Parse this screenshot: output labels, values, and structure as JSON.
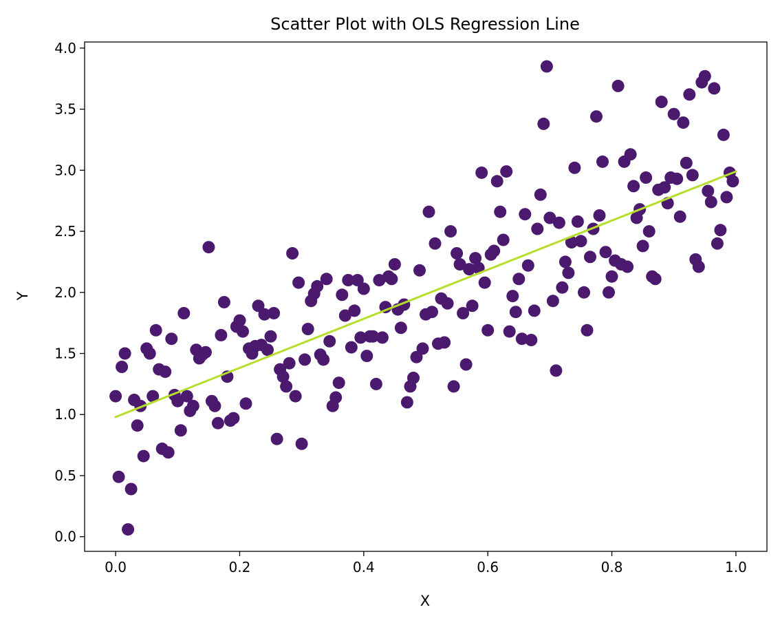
{
  "chart_data": {
    "type": "scatter",
    "title": "Scatter Plot with OLS Regression Line",
    "xlabel": "X",
    "ylabel": "Y",
    "xlim": [
      -0.05,
      1.05
    ],
    "ylim": [
      -0.12,
      4.05
    ],
    "xticks": [
      0.0,
      0.2,
      0.4,
      0.6,
      0.8,
      1.0
    ],
    "xtick_labels": [
      "0.0",
      "0.2",
      "0.4",
      "0.6",
      "0.8",
      "1.0"
    ],
    "yticks": [
      0.0,
      0.5,
      1.0,
      1.5,
      2.0,
      2.5,
      3.0,
      3.5,
      4.0
    ],
    "ytick_labels": [
      "0.0",
      "0.5",
      "1.0",
      "1.5",
      "2.0",
      "2.5",
      "3.0",
      "3.5",
      "4.0"
    ],
    "grid": false,
    "point_color": "#4b1a6f",
    "line_color": "#b5de2b",
    "regression_line": {
      "x": [
        0.0,
        1.0
      ],
      "y": [
        0.98,
        2.99
      ]
    },
    "points": [
      [
        0.0,
        1.15
      ],
      [
        0.005,
        0.49
      ],
      [
        0.01,
        1.39
      ],
      [
        0.015,
        1.5
      ],
      [
        0.02,
        0.06
      ],
      [
        0.025,
        0.39
      ],
      [
        0.03,
        1.12
      ],
      [
        0.035,
        0.91
      ],
      [
        0.04,
        1.07
      ],
      [
        0.045,
        0.66
      ],
      [
        0.05,
        1.54
      ],
      [
        0.055,
        1.5
      ],
      [
        0.06,
        1.15
      ],
      [
        0.065,
        1.69
      ],
      [
        0.07,
        1.37
      ],
      [
        0.075,
        0.72
      ],
      [
        0.08,
        1.35
      ],
      [
        0.085,
        0.69
      ],
      [
        0.09,
        1.62
      ],
      [
        0.095,
        1.16
      ],
      [
        0.1,
        1.11
      ],
      [
        0.105,
        0.87
      ],
      [
        0.11,
        1.83
      ],
      [
        0.115,
        1.15
      ],
      [
        0.12,
        1.03
      ],
      [
        0.125,
        1.07
      ],
      [
        0.13,
        1.53
      ],
      [
        0.135,
        1.46
      ],
      [
        0.14,
        1.49
      ],
      [
        0.145,
        1.51
      ],
      [
        0.15,
        2.37
      ],
      [
        0.155,
        1.11
      ],
      [
        0.16,
        1.07
      ],
      [
        0.165,
        0.93
      ],
      [
        0.17,
        1.65
      ],
      [
        0.175,
        1.92
      ],
      [
        0.18,
        1.31
      ],
      [
        0.185,
        0.95
      ],
      [
        0.19,
        0.97
      ],
      [
        0.195,
        1.72
      ],
      [
        0.2,
        1.77
      ],
      [
        0.205,
        1.68
      ],
      [
        0.21,
        1.09
      ],
      [
        0.215,
        1.54
      ],
      [
        0.22,
        1.5
      ],
      [
        0.225,
        1.56
      ],
      [
        0.23,
        1.89
      ],
      [
        0.235,
        1.57
      ],
      [
        0.24,
        1.82
      ],
      [
        0.245,
        1.53
      ],
      [
        0.25,
        1.64
      ],
      [
        0.255,
        1.83
      ],
      [
        0.26,
        0.8
      ],
      [
        0.265,
        1.37
      ],
      [
        0.27,
        1.31
      ],
      [
        0.275,
        1.23
      ],
      [
        0.28,
        1.42
      ],
      [
        0.285,
        2.32
      ],
      [
        0.29,
        1.15
      ],
      [
        0.295,
        2.08
      ],
      [
        0.3,
        0.76
      ],
      [
        0.305,
        1.45
      ],
      [
        0.31,
        1.7
      ],
      [
        0.315,
        1.93
      ],
      [
        0.32,
        1.99
      ],
      [
        0.325,
        2.05
      ],
      [
        0.33,
        1.49
      ],
      [
        0.335,
        1.45
      ],
      [
        0.34,
        2.11
      ],
      [
        0.345,
        1.6
      ],
      [
        0.35,
        1.07
      ],
      [
        0.355,
        1.14
      ],
      [
        0.36,
        1.26
      ],
      [
        0.365,
        1.98
      ],
      [
        0.37,
        1.81
      ],
      [
        0.375,
        2.1
      ],
      [
        0.38,
        1.55
      ],
      [
        0.385,
        1.85
      ],
      [
        0.39,
        2.1
      ],
      [
        0.395,
        1.63
      ],
      [
        0.4,
        2.03
      ],
      [
        0.405,
        1.48
      ],
      [
        0.41,
        1.64
      ],
      [
        0.415,
        1.64
      ],
      [
        0.42,
        1.25
      ],
      [
        0.425,
        2.1
      ],
      [
        0.43,
        1.63
      ],
      [
        0.435,
        1.88
      ],
      [
        0.44,
        2.13
      ],
      [
        0.445,
        2.11
      ],
      [
        0.45,
        2.23
      ],
      [
        0.455,
        1.86
      ],
      [
        0.46,
        1.71
      ],
      [
        0.465,
        1.9
      ],
      [
        0.47,
        1.1
      ],
      [
        0.475,
        1.23
      ],
      [
        0.48,
        1.3
      ],
      [
        0.485,
        1.47
      ],
      [
        0.49,
        2.18
      ],
      [
        0.495,
        1.54
      ],
      [
        0.5,
        1.82
      ],
      [
        0.505,
        2.66
      ],
      [
        0.51,
        1.84
      ],
      [
        0.515,
        2.4
      ],
      [
        0.52,
        1.58
      ],
      [
        0.525,
        1.95
      ],
      [
        0.53,
        1.59
      ],
      [
        0.535,
        1.91
      ],
      [
        0.54,
        2.5
      ],
      [
        0.545,
        1.23
      ],
      [
        0.55,
        2.32
      ],
      [
        0.555,
        2.23
      ],
      [
        0.56,
        1.83
      ],
      [
        0.565,
        1.41
      ],
      [
        0.57,
        2.19
      ],
      [
        0.575,
        1.89
      ],
      [
        0.58,
        2.28
      ],
      [
        0.585,
        2.2
      ],
      [
        0.59,
        2.98
      ],
      [
        0.595,
        2.08
      ],
      [
        0.6,
        1.69
      ],
      [
        0.605,
        2.31
      ],
      [
        0.61,
        2.34
      ],
      [
        0.615,
        2.91
      ],
      [
        0.62,
        2.66
      ],
      [
        0.625,
        2.43
      ],
      [
        0.63,
        2.99
      ],
      [
        0.635,
        1.68
      ],
      [
        0.64,
        1.97
      ],
      [
        0.645,
        1.84
      ],
      [
        0.65,
        2.11
      ],
      [
        0.655,
        1.62
      ],
      [
        0.66,
        2.64
      ],
      [
        0.665,
        2.22
      ],
      [
        0.67,
        1.61
      ],
      [
        0.675,
        1.85
      ],
      [
        0.68,
        2.52
      ],
      [
        0.685,
        2.8
      ],
      [
        0.69,
        3.38
      ],
      [
        0.695,
        3.85
      ],
      [
        0.7,
        2.61
      ],
      [
        0.705,
        1.93
      ],
      [
        0.71,
        1.36
      ],
      [
        0.715,
        2.57
      ],
      [
        0.72,
        2.04
      ],
      [
        0.725,
        2.25
      ],
      [
        0.73,
        2.16
      ],
      [
        0.735,
        2.41
      ],
      [
        0.74,
        3.02
      ],
      [
        0.745,
        2.58
      ],
      [
        0.75,
        2.42
      ],
      [
        0.755,
        2.0
      ],
      [
        0.76,
        1.69
      ],
      [
        0.765,
        2.29
      ],
      [
        0.77,
        2.52
      ],
      [
        0.775,
        3.44
      ],
      [
        0.78,
        2.63
      ],
      [
        0.785,
        3.07
      ],
      [
        0.79,
        2.33
      ],
      [
        0.795,
        2.0
      ],
      [
        0.8,
        2.13
      ],
      [
        0.805,
        2.26
      ],
      [
        0.81,
        3.69
      ],
      [
        0.815,
        2.23
      ],
      [
        0.82,
        3.07
      ],
      [
        0.825,
        2.21
      ],
      [
        0.83,
        3.13
      ],
      [
        0.835,
        2.87
      ],
      [
        0.84,
        2.61
      ],
      [
        0.845,
        2.68
      ],
      [
        0.85,
        2.38
      ],
      [
        0.855,
        2.94
      ],
      [
        0.86,
        2.5
      ],
      [
        0.865,
        2.13
      ],
      [
        0.87,
        2.11
      ],
      [
        0.875,
        2.84
      ],
      [
        0.88,
        3.56
      ],
      [
        0.885,
        2.86
      ],
      [
        0.89,
        2.73
      ],
      [
        0.895,
        2.94
      ],
      [
        0.9,
        3.46
      ],
      [
        0.905,
        2.93
      ],
      [
        0.91,
        2.62
      ],
      [
        0.915,
        3.39
      ],
      [
        0.92,
        3.06
      ],
      [
        0.925,
        3.62
      ],
      [
        0.93,
        2.96
      ],
      [
        0.935,
        2.27
      ],
      [
        0.94,
        2.21
      ],
      [
        0.945,
        3.72
      ],
      [
        0.95,
        3.77
      ],
      [
        0.955,
        2.83
      ],
      [
        0.96,
        2.74
      ],
      [
        0.965,
        3.67
      ],
      [
        0.97,
        2.4
      ],
      [
        0.975,
        2.51
      ],
      [
        0.98,
        3.29
      ],
      [
        0.985,
        2.78
      ],
      [
        0.99,
        2.98
      ],
      [
        0.995,
        2.91
      ]
    ]
  }
}
